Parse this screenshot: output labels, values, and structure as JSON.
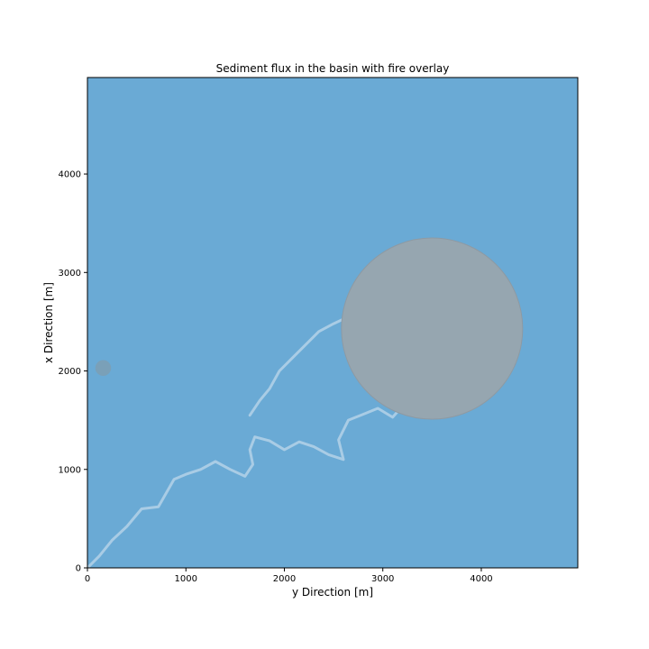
{
  "chart_data": {
    "type": "heatmap",
    "title": "Sediment flux in the basin with fire overlay",
    "xlabel": "y Direction [m]",
    "ylabel": "x Direction [m]",
    "xlim": [
      0,
      4980
    ],
    "ylim": [
      0,
      4980
    ],
    "xticks": [
      0,
      1000,
      2000,
      3000,
      4000
    ],
    "yticks": [
      0,
      1000,
      2000,
      3000,
      4000
    ],
    "grid": false,
    "colors": {
      "background": "#6aaad5",
      "channel": "#b4d2e8",
      "fire": "#96a6b0",
      "fire_edge": "#8e9aa3",
      "outlet": "#7aa0b8"
    },
    "channel_path": [
      [
        0,
        0
      ],
      [
        120,
        120
      ],
      [
        250,
        280
      ],
      [
        400,
        420
      ],
      [
        550,
        600
      ],
      [
        720,
        620
      ],
      [
        880,
        900
      ],
      [
        1000,
        950
      ],
      [
        1150,
        1000
      ],
      [
        1300,
        1080
      ],
      [
        1450,
        1000
      ],
      [
        1600,
        930
      ],
      [
        1680,
        1050
      ],
      [
        1650,
        1200
      ],
      [
        1700,
        1330
      ],
      [
        1850,
        1290
      ],
      [
        2000,
        1200
      ],
      [
        2150,
        1280
      ],
      [
        2300,
        1230
      ],
      [
        2450,
        1150
      ],
      [
        2600,
        1100
      ],
      [
        2550,
        1300
      ],
      [
        2650,
        1500
      ],
      [
        2800,
        1560
      ],
      [
        2950,
        1620
      ],
      [
        3100,
        1530
      ],
      [
        3250,
        1700
      ],
      [
        3400,
        1900
      ],
      [
        3550,
        2100
      ],
      [
        3700,
        2300
      ],
      [
        3850,
        2500
      ],
      [
        3950,
        2700
      ],
      [
        3850,
        2850
      ],
      [
        3650,
        2950
      ],
      [
        3400,
        2950
      ],
      [
        3200,
        2970
      ],
      [
        3000,
        2900
      ],
      [
        2850,
        2850
      ],
      [
        2750,
        2700
      ],
      [
        2650,
        2550
      ],
      [
        2500,
        2480
      ],
      [
        2350,
        2400
      ],
      [
        2200,
        2250
      ],
      [
        2100,
        2150
      ],
      [
        1950,
        2000
      ],
      [
        1850,
        1820
      ],
      [
        1750,
        1700
      ],
      [
        1650,
        1550
      ]
    ],
    "fire_circle": {
      "center": [
        3500,
        2430
      ],
      "radius": 920
    },
    "outlet_point": {
      "center": [
        160,
        2030
      ],
      "radius": 80
    }
  }
}
